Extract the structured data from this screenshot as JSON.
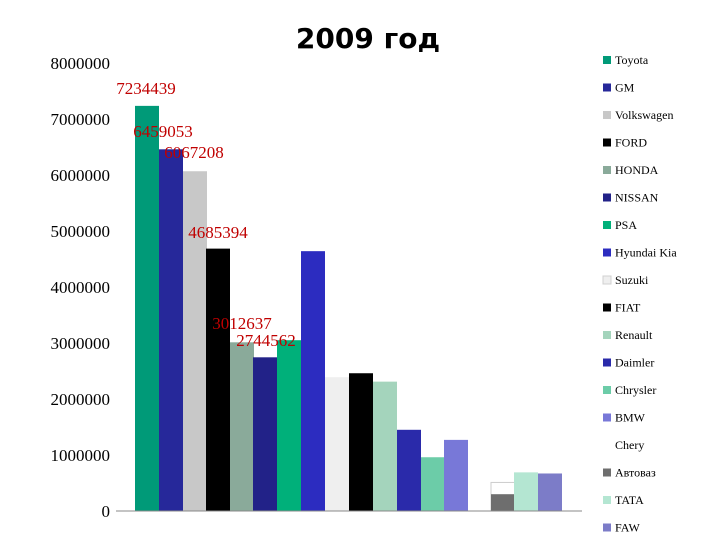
{
  "chart_data": {
    "type": "bar",
    "title": "2009 год",
    "xlabel": "",
    "ylabel": "",
    "ylim": [
      0,
      8000000
    ],
    "yticks": [
      {
        "value": 0,
        "label": "0"
      },
      {
        "value": 1000000,
        "label": "1000000"
      },
      {
        "value": 2000000,
        "label": "2000000"
      },
      {
        "value": 3000000,
        "label": "3000000"
      },
      {
        "value": 4000000,
        "label": "4000000"
      },
      {
        "value": 5000000,
        "label": "5000000"
      },
      {
        "value": 6000000,
        "label": "6000000"
      },
      {
        "value": 7000000,
        "label": "7000000"
      },
      {
        "value": 8000000,
        "label": "8000000"
      }
    ],
    "grid": false,
    "legend": "right",
    "series": [
      {
        "name": "Toyota",
        "value": 7234439,
        "color": "#009a78",
        "label": "7234439"
      },
      {
        "name": "GM",
        "value": 6459053,
        "color": "#26289a",
        "label": "6459053"
      },
      {
        "name": "Volkswagen",
        "value": 6067208,
        "color": "#c8c8c8",
        "label": "6067208"
      },
      {
        "name": "FORD",
        "value": 4685394,
        "color": "#000000",
        "label": "4685394"
      },
      {
        "name": "HONDA",
        "value": 3012637,
        "color": "#8aaa9a",
        "label": "3012637"
      },
      {
        "name": "NISSAN",
        "value": 2744562,
        "color": "#222288",
        "label": "2744562"
      },
      {
        "name": "PSA",
        "value": 3050000,
        "color": "#00b07a",
        "label": null
      },
      {
        "name": "Hyundai Kia",
        "value": 4640000,
        "color": "#2c2cc0",
        "label": null
      },
      {
        "name": "Suzuki",
        "value": 2390000,
        "color": "#efefef",
        "label": null
      },
      {
        "name": "FIAT",
        "value": 2460000,
        "color": "#000000",
        "label": null
      },
      {
        "name": "Renault",
        "value": 2310000,
        "color": "#a4d4bc",
        "label": null
      },
      {
        "name": "Daimler",
        "value": 1450000,
        "color": "#2a2aaa",
        "label": null
      },
      {
        "name": "Chrysler",
        "value": 960000,
        "color": "#6ccca8",
        "label": null
      },
      {
        "name": "BMW",
        "value": 1270000,
        "color": "#7878d8",
        "label": null
      },
      {
        "name": "Chery",
        "value": 510000,
        "color": "#ffffff",
        "label": null
      },
      {
        "name": "Автоваз",
        "value": 300000,
        "color": "#6e6e6e",
        "label": null
      },
      {
        "name": "TATA",
        "value": 690000,
        "color": "#b4e6d2",
        "label": null
      },
      {
        "name": "FAW",
        "value": 670000,
        "color": "#7c7cc8",
        "label": null
      }
    ]
  }
}
